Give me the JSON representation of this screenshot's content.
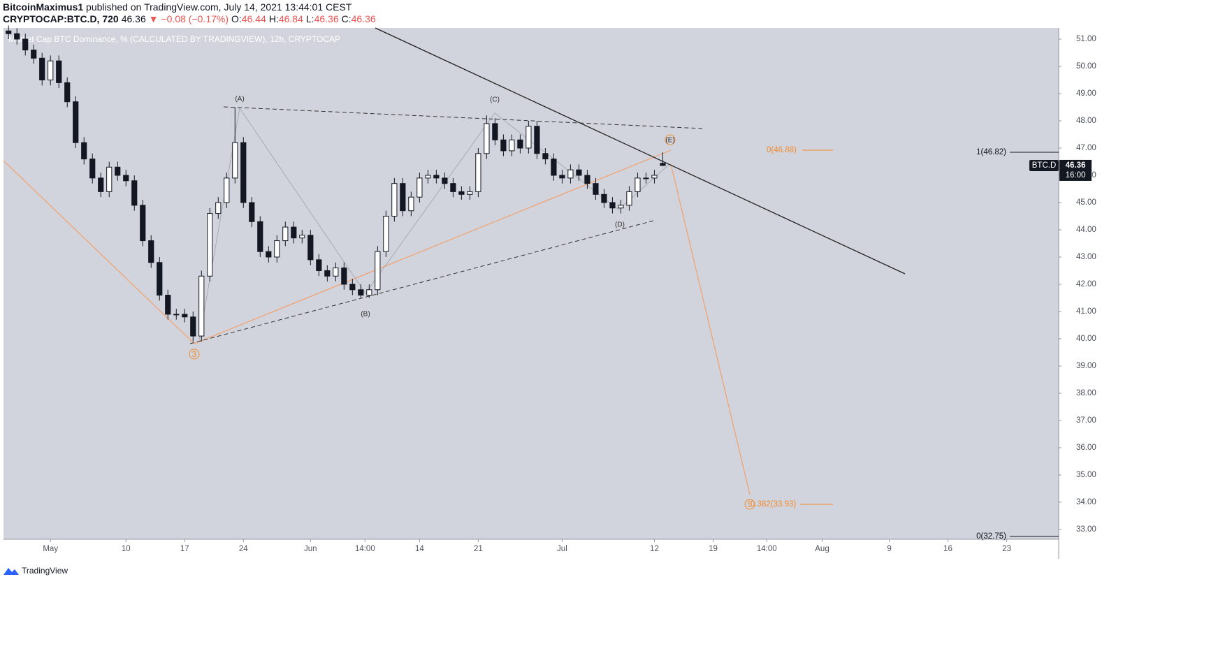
{
  "header": {
    "author": "BitcoinMaximus1",
    "published": " published on TradingView.com, July 14, 2021 13:44:01 CEST"
  },
  "legend": {
    "symbol": "CRYPTOCAP:BTC.D, 720",
    "last": "46.36",
    "change": "▼ −0.08 (−0.17%)",
    "ohlc": [
      {
        "label": "O:",
        "value": "46.44"
      },
      {
        "label": "H:",
        "value": "46.84"
      },
      {
        "label": "L:",
        "value": "46.36"
      },
      {
        "label": "C:",
        "value": "46.36"
      }
    ]
  },
  "watermark": "Market Cap BTC Dominance, % (CALCULATED BY TRADINGVIEW), 12h, CRYPTOCAP",
  "footer": "TradingView",
  "chart_data": {
    "type": "candlestick",
    "up_color": "#ffffff",
    "down_color": "#131722",
    "border_color": "#131722",
    "background": "#d1d4dc",
    "xlim": [
      -5.6,
      120.2
    ],
    "ylim": [
      32.64,
      51.41
    ],
    "xticks": [
      {
        "value": 0,
        "label": "May"
      },
      {
        "value": 9,
        "label": "10"
      },
      {
        "value": 16,
        "label": "17"
      },
      {
        "value": 23,
        "label": "24"
      },
      {
        "value": 31,
        "label": "Jun"
      },
      {
        "value": 37.5,
        "label": "14:00"
      },
      {
        "value": 44,
        "label": "14"
      },
      {
        "value": 51,
        "label": "21"
      },
      {
        "value": 61,
        "label": "Jul"
      },
      {
        "value": 72,
        "label": "12"
      },
      {
        "value": 79,
        "label": "19"
      },
      {
        "value": 85.4,
        "label": "14:00"
      },
      {
        "value": 92,
        "label": "Aug"
      },
      {
        "value": 100,
        "label": "9"
      },
      {
        "value": 107,
        "label": "16"
      },
      {
        "value": 114,
        "label": "23"
      }
    ],
    "yticks": [
      {
        "value": 33,
        "label": "33.00"
      },
      {
        "value": 34,
        "label": "34.00"
      },
      {
        "value": 35,
        "label": "35.00"
      },
      {
        "value": 36,
        "label": "36.00"
      },
      {
        "value": 37,
        "label": "37.00"
      },
      {
        "value": 38,
        "label": "38.00"
      },
      {
        "value": 39,
        "label": "39.00"
      },
      {
        "value": 40,
        "label": "40.00"
      },
      {
        "value": 41,
        "label": "41.00"
      },
      {
        "value": 42,
        "label": "42.00"
      },
      {
        "value": 43,
        "label": "43.00"
      },
      {
        "value": 44,
        "label": "44.00"
      },
      {
        "value": 45,
        "label": "45.00"
      },
      {
        "value": 46,
        "label": "46.00"
      },
      {
        "value": 47,
        "label": "47.00"
      },
      {
        "value": 48,
        "label": "48.00"
      },
      {
        "value": 49,
        "label": "49.00"
      },
      {
        "value": 50,
        "label": "50.00"
      },
      {
        "value": 51,
        "label": "51.00"
      }
    ],
    "x": [
      -5,
      -4,
      -3,
      -2,
      -1,
      0,
      1,
      2,
      3,
      4,
      5,
      6,
      7,
      8,
      9,
      10,
      11,
      12,
      13,
      14,
      15,
      16,
      17,
      18,
      19,
      20,
      21,
      22,
      23,
      24,
      25,
      26,
      27,
      28,
      29,
      30,
      31,
      32,
      33,
      34,
      35,
      36,
      37,
      38,
      39,
      40,
      41,
      42,
      43,
      44,
      45,
      46,
      47,
      48,
      49,
      50,
      51,
      52,
      53,
      54,
      55,
      56,
      57,
      58,
      59,
      60,
      61,
      62,
      63,
      64,
      65,
      66,
      67,
      68,
      69,
      70,
      71,
      72,
      73
    ],
    "open": [
      51.3,
      51.2,
      51.0,
      50.6,
      50.3,
      49.5,
      50.2,
      49.4,
      48.7,
      47.2,
      46.6,
      45.9,
      45.4,
      46.3,
      46.0,
      45.8,
      44.9,
      43.6,
      42.8,
      41.6,
      40.9,
      40.9,
      40.8,
      40.1,
      42.3,
      44.6,
      45.0,
      45.9,
      47.2,
      45.0,
      44.3,
      43.2,
      43.0,
      43.6,
      44.1,
      43.7,
      43.8,
      42.9,
      42.5,
      42.3,
      42.6,
      42.0,
      41.8,
      41.6,
      41.8,
      43.2,
      44.5,
      45.7,
      44.7,
      45.2,
      45.9,
      46.0,
      45.9,
      45.7,
      45.4,
      45.3,
      45.4,
      46.8,
      47.9,
      47.3,
      46.9,
      47.3,
      47.0,
      47.8,
      46.8,
      46.6,
      46.0,
      45.9,
      46.2,
      46.0,
      45.7,
      45.3,
      45.0,
      44.8,
      44.9,
      45.4,
      45.9,
      45.9,
      46.44
    ],
    "high": [
      51.5,
      51.4,
      51.2,
      50.8,
      50.5,
      50.4,
      50.4,
      49.6,
      48.9,
      47.4,
      46.8,
      46.1,
      46.5,
      46.5,
      46.2,
      46.0,
      45.1,
      43.8,
      43.0,
      41.8,
      41.1,
      41.1,
      41.0,
      42.5,
      44.8,
      45.2,
      46.1,
      48.5,
      47.4,
      45.2,
      44.5,
      43.4,
      43.8,
      44.3,
      44.3,
      44.0,
      44.0,
      43.1,
      42.7,
      42.8,
      42.8,
      42.2,
      42.0,
      42.0,
      43.4,
      44.7,
      45.9,
      45.9,
      45.4,
      46.1,
      46.2,
      46.2,
      46.1,
      45.9,
      45.6,
      45.6,
      47.0,
      48.2,
      48.1,
      47.5,
      47.5,
      47.5,
      48.0,
      48.0,
      47.0,
      46.8,
      46.2,
      46.4,
      46.4,
      46.2,
      45.9,
      45.5,
      45.2,
      45.1,
      45.6,
      46.1,
      46.1,
      46.2,
      46.84
    ],
    "low": [
      51.0,
      50.8,
      50.4,
      50.1,
      49.3,
      49.3,
      49.2,
      48.5,
      47.0,
      46.4,
      45.7,
      45.2,
      45.2,
      45.8,
      45.6,
      44.7,
      43.4,
      42.6,
      41.4,
      40.7,
      40.7,
      40.6,
      39.9,
      39.9,
      42.1,
      44.4,
      44.8,
      45.7,
      44.8,
      44.1,
      43.0,
      42.8,
      42.8,
      43.4,
      43.5,
      43.5,
      42.7,
      42.3,
      42.1,
      42.1,
      41.8,
      41.6,
      41.5,
      41.5,
      41.6,
      43.0,
      44.3,
      44.5,
      44.5,
      45.0,
      45.7,
      45.7,
      45.5,
      45.2,
      45.1,
      45.1,
      45.2,
      46.6,
      47.1,
      46.7,
      46.7,
      46.8,
      46.8,
      46.6,
      46.4,
      45.8,
      45.7,
      45.7,
      45.8,
      45.5,
      45.1,
      44.8,
      44.6,
      44.6,
      44.7,
      45.2,
      45.7,
      45.7,
      46.36
    ],
    "close": [
      51.2,
      51.0,
      50.6,
      50.3,
      49.5,
      50.2,
      49.4,
      48.7,
      47.2,
      46.6,
      45.9,
      45.4,
      46.3,
      46.0,
      45.8,
      44.9,
      43.6,
      42.8,
      41.6,
      40.9,
      40.9,
      40.8,
      40.1,
      42.3,
      44.6,
      45.0,
      45.9,
      47.2,
      45.0,
      44.3,
      43.2,
      43.0,
      43.6,
      44.1,
      43.7,
      43.8,
      42.9,
      42.5,
      42.3,
      42.6,
      42.0,
      41.8,
      41.6,
      41.8,
      43.2,
      44.5,
      45.7,
      44.7,
      45.2,
      45.9,
      46.0,
      45.9,
      45.7,
      45.4,
      45.3,
      45.4,
      46.8,
      47.9,
      47.3,
      46.9,
      47.3,
      47.0,
      47.8,
      46.8,
      46.6,
      46.0,
      45.9,
      46.2,
      46.0,
      45.7,
      45.3,
      45.0,
      44.8,
      44.9,
      45.4,
      45.9,
      45.9,
      46.0,
      46.36
    ],
    "price_tag": {
      "label": "BTC.D",
      "value": 46.36,
      "time": "16:00"
    },
    "annotations": {
      "wave_a": "(A)",
      "wave_b": "(B)",
      "wave_c": "(C)",
      "wave_d": "(D)",
      "wave_e": "(E)",
      "wave_3": "3",
      "wave_5": "5",
      "fib_top_orange": "0(46.88)",
      "fib_bottom_orange": "0.382(33.93)",
      "fib_top_black": "1(46.82)",
      "fib_bottom_black": "0(32.75)"
    }
  }
}
